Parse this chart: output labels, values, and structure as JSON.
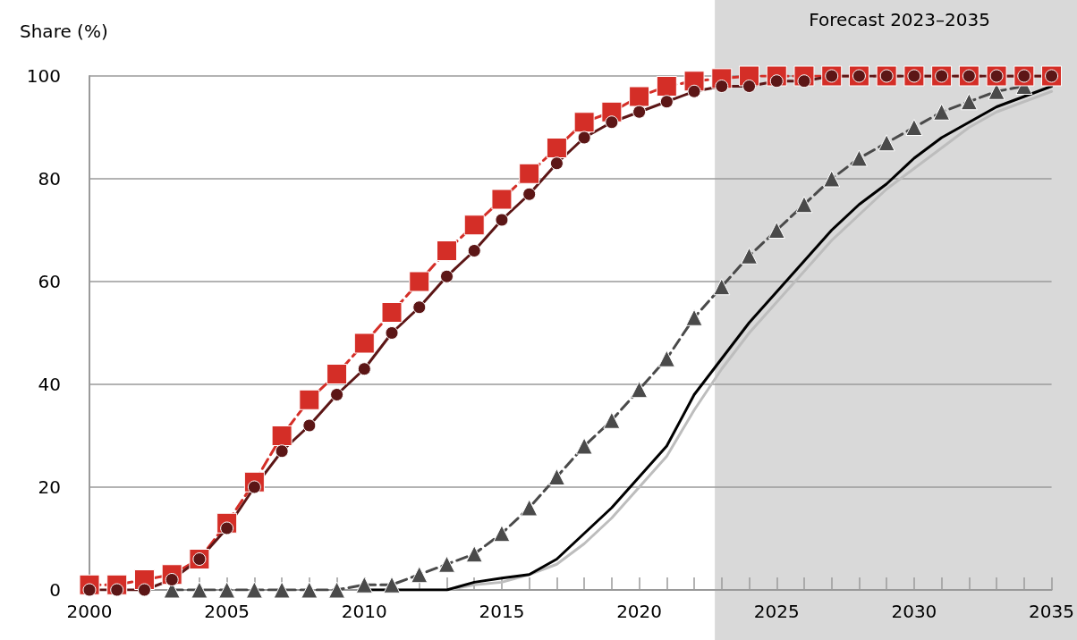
{
  "chart_data": {
    "type": "line",
    "ylabel": "Share (%)",
    "x": [
      2000,
      2001,
      2002,
      2003,
      2004,
      2005,
      2006,
      2007,
      2008,
      2009,
      2010,
      2011,
      2012,
      2013,
      2014,
      2015,
      2016,
      2017,
      2018,
      2019,
      2020,
      2021,
      2022,
      2023,
      2024,
      2025,
      2026,
      2027,
      2028,
      2029,
      2030,
      2031,
      2032,
      2033,
      2034,
      2035
    ],
    "series": [
      {
        "color": "#bdbdbd",
        "marker": "none",
        "line_style": "solid",
        "values": [
          null,
          null,
          null,
          null,
          null,
          null,
          null,
          null,
          null,
          null,
          0,
          0,
          0,
          0,
          1,
          1.5,
          3,
          5,
          9,
          14,
          20,
          26,
          35,
          43,
          50,
          56,
          62,
          68,
          73,
          78,
          82,
          86,
          90,
          93,
          95,
          97
        ]
      },
      {
        "color": "#000000",
        "marker": "none",
        "line_style": "solid",
        "values": [
          null,
          null,
          null,
          null,
          null,
          null,
          null,
          null,
          null,
          null,
          0,
          0,
          0,
          0,
          1.5,
          2.3,
          3,
          6,
          11,
          16,
          22,
          28,
          38,
          45,
          52,
          58,
          64,
          70,
          75,
          79,
          84,
          88,
          91,
          94,
          96,
          98
        ]
      },
      {
        "color": "#4a4a4a",
        "marker": "triangle",
        "line_style": "dashed",
        "values": [
          null,
          null,
          null,
          0,
          0,
          0,
          0,
          0,
          0,
          0,
          1,
          1,
          3,
          5,
          7,
          11,
          16,
          22,
          28,
          33,
          39,
          45,
          53,
          59,
          65,
          70,
          75,
          80,
          84,
          87,
          90,
          93,
          95,
          97,
          98,
          null
        ]
      },
      {
        "color": "#d42e27",
        "marker": "square",
        "line_style": "dashed",
        "values": [
          1,
          1,
          2,
          3,
          6,
          13,
          21,
          30,
          37,
          42,
          48,
          54,
          60,
          66,
          71,
          76,
          81,
          86,
          91,
          93,
          96,
          98,
          99,
          99.5,
          100,
          100,
          100,
          100,
          100,
          100,
          100,
          100,
          100,
          100,
          100,
          100
        ]
      },
      {
        "color": "#5c1616",
        "marker": "circle",
        "line_style": "solid",
        "values": [
          0,
          0,
          0,
          2,
          6,
          12,
          20,
          27,
          32,
          38,
          43,
          50,
          55,
          61,
          66,
          72,
          77,
          83,
          88,
          91,
          93,
          95,
          97,
          98,
          98,
          99,
          99,
          100,
          100,
          100,
          100,
          100,
          100,
          100,
          100,
          100
        ]
      }
    ],
    "xlim": [
      2000,
      2035
    ],
    "xticks": [
      2000,
      {
        "value": 2001,
        "label": null
      },
      {
        "value": 2002,
        "label": null
      },
      {
        "value": 2003,
        "label": null
      },
      {
        "value": 2004,
        "label": null
      },
      2005,
      {
        "value": 2006,
        "label": null
      },
      {
        "value": 2007,
        "label": null
      },
      {
        "value": 2008,
        "label": null
      },
      {
        "value": 2009,
        "label": null
      },
      2010,
      {
        "value": 2011,
        "label": null
      },
      {
        "value": 2012,
        "label": null
      },
      {
        "value": 2013,
        "label": null
      },
      {
        "value": 2014,
        "label": null
      },
      2015,
      {
        "value": 2016,
        "label": null
      },
      {
        "value": 2017,
        "label": null
      },
      {
        "value": 2018,
        "label": null
      },
      {
        "value": 2019,
        "label": null
      },
      2020,
      {
        "value": 2021,
        "label": null
      },
      {
        "value": 2022,
        "label": null
      },
      {
        "value": 2023,
        "label": null
      },
      {
        "value": 2024,
        "label": null
      },
      2025,
      {
        "value": 2026,
        "label": null
      },
      {
        "value": 2027,
        "label": null
      },
      {
        "value": 2028,
        "label": null
      },
      {
        "value": 2029,
        "label": null
      },
      2030,
      {
        "value": 2031,
        "label": null
      },
      {
        "value": 2032,
        "label": null
      },
      {
        "value": 2033,
        "label": null
      },
      {
        "value": 2034,
        "label": null
      },
      2035
    ],
    "ylim": [
      0,
      100
    ],
    "yticks": [
      0,
      20,
      40,
      60,
      80,
      100
    ],
    "grid": "y",
    "bands": [
      {
        "axis": "x",
        "from": 2022.75,
        "to": 2035,
        "label": "Forecast 2023–2035",
        "color": "#d9d9d9"
      }
    ]
  }
}
